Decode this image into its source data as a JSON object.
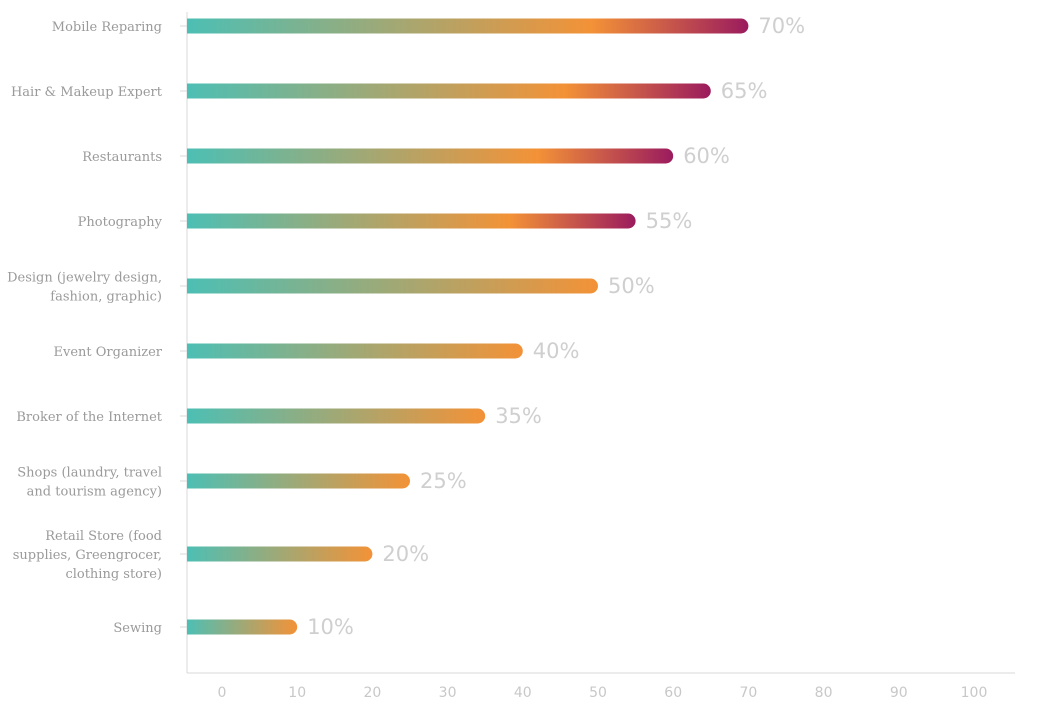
{
  "chart_data": {
    "type": "bar",
    "orientation": "horizontal",
    "categories": [
      "Mobile Reparing",
      "Hair & Makeup Expert",
      "Restaurants",
      "Photography",
      "Design (jewelry design, fashion, graphic)",
      "Event Organizer",
      "Broker of the Internet",
      "Shops (laundry, travel and tourism agency)",
      "Retail Store (food supplies, Greengrocer, clothing store)",
      "Sewing"
    ],
    "category_lines": [
      [
        "Mobile Reparing"
      ],
      [
        "Hair & Makeup Expert"
      ],
      [
        "Restaurants"
      ],
      [
        "Photography"
      ],
      [
        "Design (jewelry design,",
        "fashion, graphic)"
      ],
      [
        "Event Organizer"
      ],
      [
        "Broker of the Internet"
      ],
      [
        "Shops (laundry, travel",
        "and tourism agency)"
      ],
      [
        "Retail Store (food",
        "supplies, Greengrocer,",
        "clothing store)"
      ],
      [
        "Sewing"
      ]
    ],
    "values": [
      70,
      65,
      60,
      55,
      50,
      40,
      35,
      25,
      20,
      10
    ],
    "data_labels": [
      "70%",
      "65%",
      "60%",
      "55%",
      "50%",
      "40%",
      "35%",
      "25%",
      "20%",
      "10%"
    ],
    "xticks": [
      "0",
      "10",
      "20",
      "30",
      "40",
      "50",
      "60",
      "70",
      "80",
      "90",
      "100"
    ],
    "xlim": [
      0,
      100
    ],
    "title": "",
    "xlabel": "",
    "ylabel": "",
    "grid": false,
    "legend": "none",
    "gradient_colors": [
      "#4dbfb4",
      "#f39237",
      "#9b1b5e"
    ]
  }
}
